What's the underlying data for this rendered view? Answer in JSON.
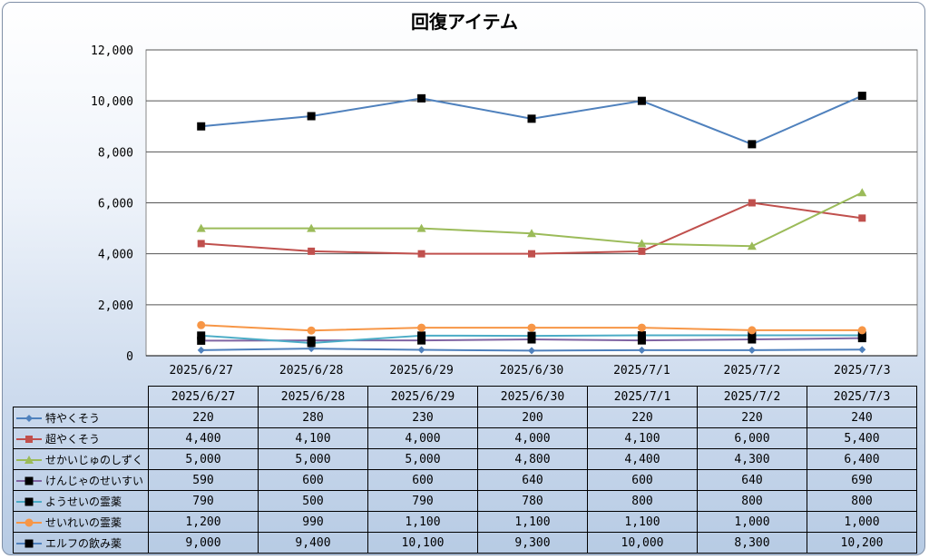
{
  "chart_data": {
    "type": "line",
    "title": "回復アイテム",
    "categories": [
      "2025/6/27",
      "2025/6/28",
      "2025/6/29",
      "2025/6/30",
      "2025/7/1",
      "2025/7/2",
      "2025/7/3"
    ],
    "ylim": [
      0,
      12000
    ],
    "yticks": [
      "0",
      "2,000",
      "4,000",
      "6,000",
      "8,000",
      "10,000",
      "12,000"
    ],
    "grid": true,
    "legend": "data-table",
    "series": [
      {
        "name": "特やくそう",
        "color": "#4f81bd",
        "marker": "diamond",
        "values": [
          220,
          280,
          230,
          200,
          220,
          220,
          240
        ],
        "labels": [
          "220",
          "280",
          "230",
          "200",
          "220",
          "220",
          "240"
        ]
      },
      {
        "name": "超やくそう",
        "color": "#c0504d",
        "marker": "square",
        "values": [
          4400,
          4100,
          4000,
          4000,
          4100,
          6000,
          5400
        ],
        "labels": [
          "4,400",
          "4,100",
          "4,000",
          "4,000",
          "4,100",
          "6,000",
          "5,400"
        ]
      },
      {
        "name": "せかいじゅのしずく",
        "color": "#9bbb59",
        "marker": "triangle",
        "values": [
          5000,
          5000,
          5000,
          4800,
          4400,
          4300,
          6400
        ],
        "labels": [
          "5,000",
          "5,000",
          "5,000",
          "4,800",
          "4,400",
          "4,300",
          "6,400"
        ]
      },
      {
        "name": "けんじゃのせいすい",
        "color": "#8064a2",
        "marker": "blacksquare",
        "values": [
          590,
          600,
          600,
          640,
          600,
          640,
          690
        ],
        "labels": [
          "590",
          "600",
          "600",
          "640",
          "600",
          "640",
          "690"
        ]
      },
      {
        "name": "ようせいの霊薬",
        "color": "#4bacc6",
        "marker": "blacksquare",
        "values": [
          790,
          500,
          790,
          780,
          800,
          800,
          800
        ],
        "labels": [
          "790",
          "500",
          "790",
          "780",
          "800",
          "800",
          "800"
        ]
      },
      {
        "name": "せいれいの霊薬",
        "color": "#f79646",
        "marker": "circle",
        "values": [
          1200,
          990,
          1100,
          1100,
          1100,
          1000,
          1000
        ],
        "labels": [
          "1,200",
          "990",
          "1,100",
          "1,100",
          "1,100",
          "1,000",
          "1,000"
        ]
      },
      {
        "name": "エルフの飲み薬",
        "color": "#4f81bd",
        "marker": "blacksquare",
        "values": [
          9000,
          9400,
          10100,
          9300,
          10000,
          8300,
          10200
        ],
        "labels": [
          "9,000",
          "9,400",
          "10,100",
          "9,300",
          "10,000",
          "8,300",
          "10,200"
        ]
      }
    ]
  }
}
